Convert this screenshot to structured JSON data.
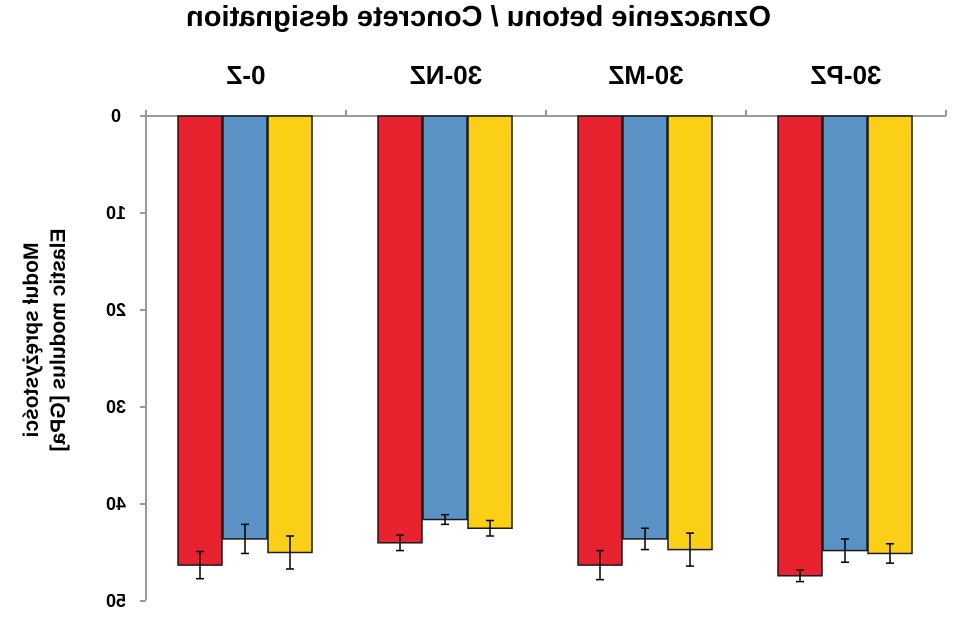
{
  "chart_data": {
    "type": "bar",
    "orientation": "inverted-mirrored",
    "title": "Oznaczenie betonu / Concrete designation",
    "ylabel_line1": "Moduł sprężystości",
    "ylabel_line2": "Elastic modulus [GPa]",
    "categories": [
      "0-Z",
      "30-NZ",
      "30-MZ",
      "30-PZ"
    ],
    "yticks": [
      "0",
      "10",
      "20",
      "30",
      "40",
      "50"
    ],
    "ylim": [
      0,
      50
    ],
    "series": [
      {
        "color": "#e8222e",
        "values": [
          46.3,
          44.0,
          46.3,
          47.4
        ],
        "errors": [
          1.4,
          0.8,
          1.5,
          0.6
        ]
      },
      {
        "color": "#5b92c6",
        "values": [
          43.6,
          41.6,
          43.6,
          44.8
        ],
        "errors": [
          1.5,
          0.5,
          1.1,
          1.2
        ]
      },
      {
        "color": "#fbcf15",
        "values": [
          45.0,
          42.5,
          44.7,
          45.1
        ],
        "errors": [
          1.7,
          0.8,
          1.7,
          1.0
        ]
      }
    ],
    "grid": false,
    "legend": "none"
  }
}
